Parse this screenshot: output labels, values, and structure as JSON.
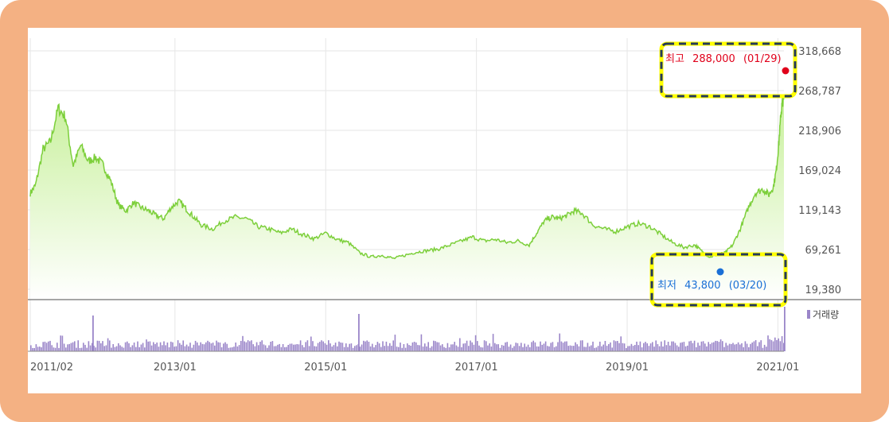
{
  "chart_data": {
    "type": "area",
    "y_ticks": [
      "318,668",
      "268,787",
      "218,906",
      "169,024",
      "119,143",
      "69,261",
      "19,380"
    ],
    "y_tick_values": [
      318668,
      268787,
      218906,
      169024,
      119143,
      69261,
      19380
    ],
    "ylim": [
      19380,
      318668
    ],
    "x_ticks": [
      "2011/02",
      "2013/01",
      "2015/01",
      "2017/01",
      "2019/01",
      "2021/01"
    ],
    "x_tick_values": [
      2011.08,
      2013.0,
      2015.0,
      2017.0,
      2019.0,
      2021.0
    ],
    "xlim": [
      2011.08,
      2021.08
    ],
    "series": [
      {
        "x": [
          2011.08,
          2011.15,
          2011.25,
          2011.35,
          2011.45,
          2011.55,
          2011.65,
          2011.75,
          2011.85,
          2011.95,
          2012.05,
          2012.15,
          2012.25,
          2012.35,
          2012.45,
          2012.55,
          2012.65,
          2012.75,
          2012.85,
          2012.95,
          2013.05,
          2013.15,
          2013.25,
          2013.35,
          2013.5,
          2013.65,
          2013.8,
          2013.95,
          2014.1,
          2014.25,
          2014.4,
          2014.55,
          2014.7,
          2014.85,
          2015.0,
          2015.15,
          2015.3,
          2015.45,
          2015.6,
          2015.75,
          2015.9,
          2016.05,
          2016.2,
          2016.35,
          2016.5,
          2016.65,
          2016.8,
          2016.95,
          2017.1,
          2017.25,
          2017.4,
          2017.55,
          2017.7,
          2017.8,
          2017.9,
          2018.0,
          2018.1,
          2018.2,
          2018.3,
          2018.4,
          2018.55,
          2018.7,
          2018.85,
          2019.0,
          2019.15,
          2019.3,
          2019.45,
          2019.6,
          2019.75,
          2019.9,
          2020.0,
          2020.1,
          2020.2,
          2020.3,
          2020.4,
          2020.5,
          2020.6,
          2020.7,
          2020.8,
          2020.88,
          2020.94,
          2020.98,
          2021.01,
          2021.04,
          2021.06,
          2021.08
        ],
        "values": [
          140000,
          150000,
          195000,
          205000,
          247000,
          235000,
          175000,
          200000,
          180000,
          185000,
          175000,
          155000,
          125000,
          118000,
          128000,
          122000,
          118000,
          112000,
          108000,
          122000,
          130000,
          120000,
          110000,
          100000,
          95000,
          105000,
          110000,
          108000,
          98000,
          95000,
          90000,
          95000,
          88000,
          83000,
          90000,
          82000,
          78000,
          65000,
          60000,
          62000,
          58000,
          62000,
          66000,
          68000,
          70000,
          75000,
          80000,
          85000,
          80000,
          82000,
          78000,
          80000,
          75000,
          90000,
          105000,
          110000,
          108000,
          112000,
          118000,
          115000,
          100000,
          95000,
          92000,
          98000,
          102000,
          98000,
          88000,
          78000,
          72000,
          75000,
          66000,
          60000,
          63000,
          65000,
          75000,
          95000,
          120000,
          140000,
          145000,
          138000,
          148000,
          170000,
          200000,
          240000,
          255000,
          260000
        ]
      }
    ],
    "volume": {
      "legend": "거래량"
    },
    "annotations": {
      "high": {
        "label": "최고",
        "value": "288,000",
        "date": "(01/29)"
      },
      "low": {
        "label": "최저",
        "value": "43,800",
        "date": "(03/20)"
      }
    },
    "colors": {
      "line": "#7ccf3a",
      "fill_top": "#c7f09a",
      "fill_bottom": "#ffffff",
      "volume": "#9b86c9",
      "high": "#e0001a",
      "low": "#1a6fd6",
      "highlight_border": "#ffff00",
      "highlight_dash": "#23395d",
      "frame": "#f4b183"
    }
  }
}
